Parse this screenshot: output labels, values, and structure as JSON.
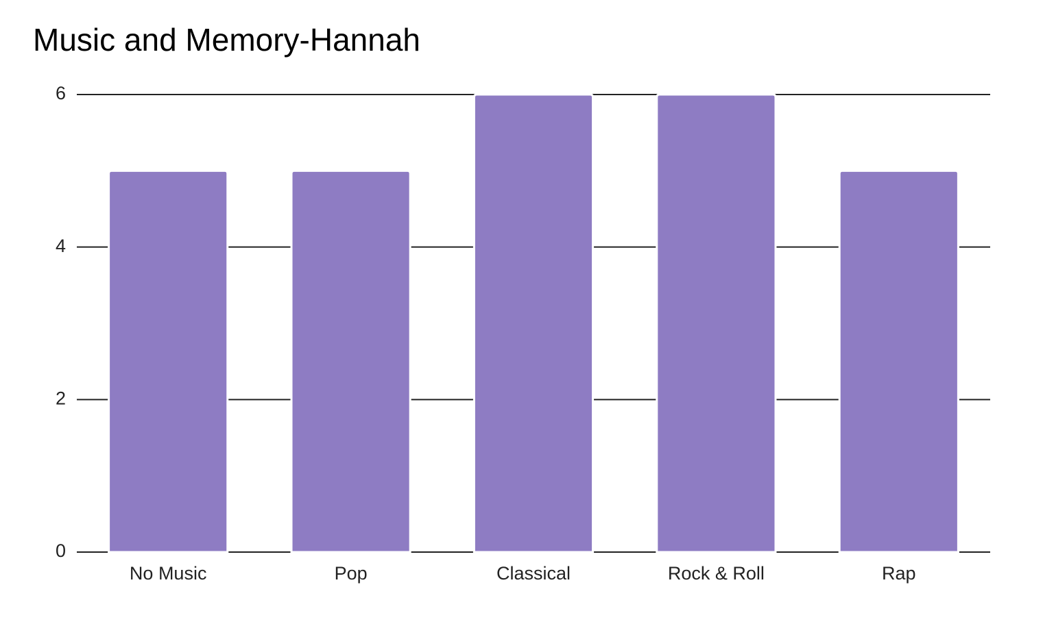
{
  "chart_data": {
    "type": "bar",
    "title": "Music and Memory-Hannah",
    "categories": [
      "No Music",
      "Pop",
      "Classical",
      "Rock & Roll",
      "Rap"
    ],
    "values": [
      5,
      5,
      6,
      6,
      5
    ],
    "color": "#8e7cc3",
    "ylim": [
      0,
      6
    ],
    "yticks": [
      0,
      2,
      4,
      6
    ],
    "grid": true
  }
}
